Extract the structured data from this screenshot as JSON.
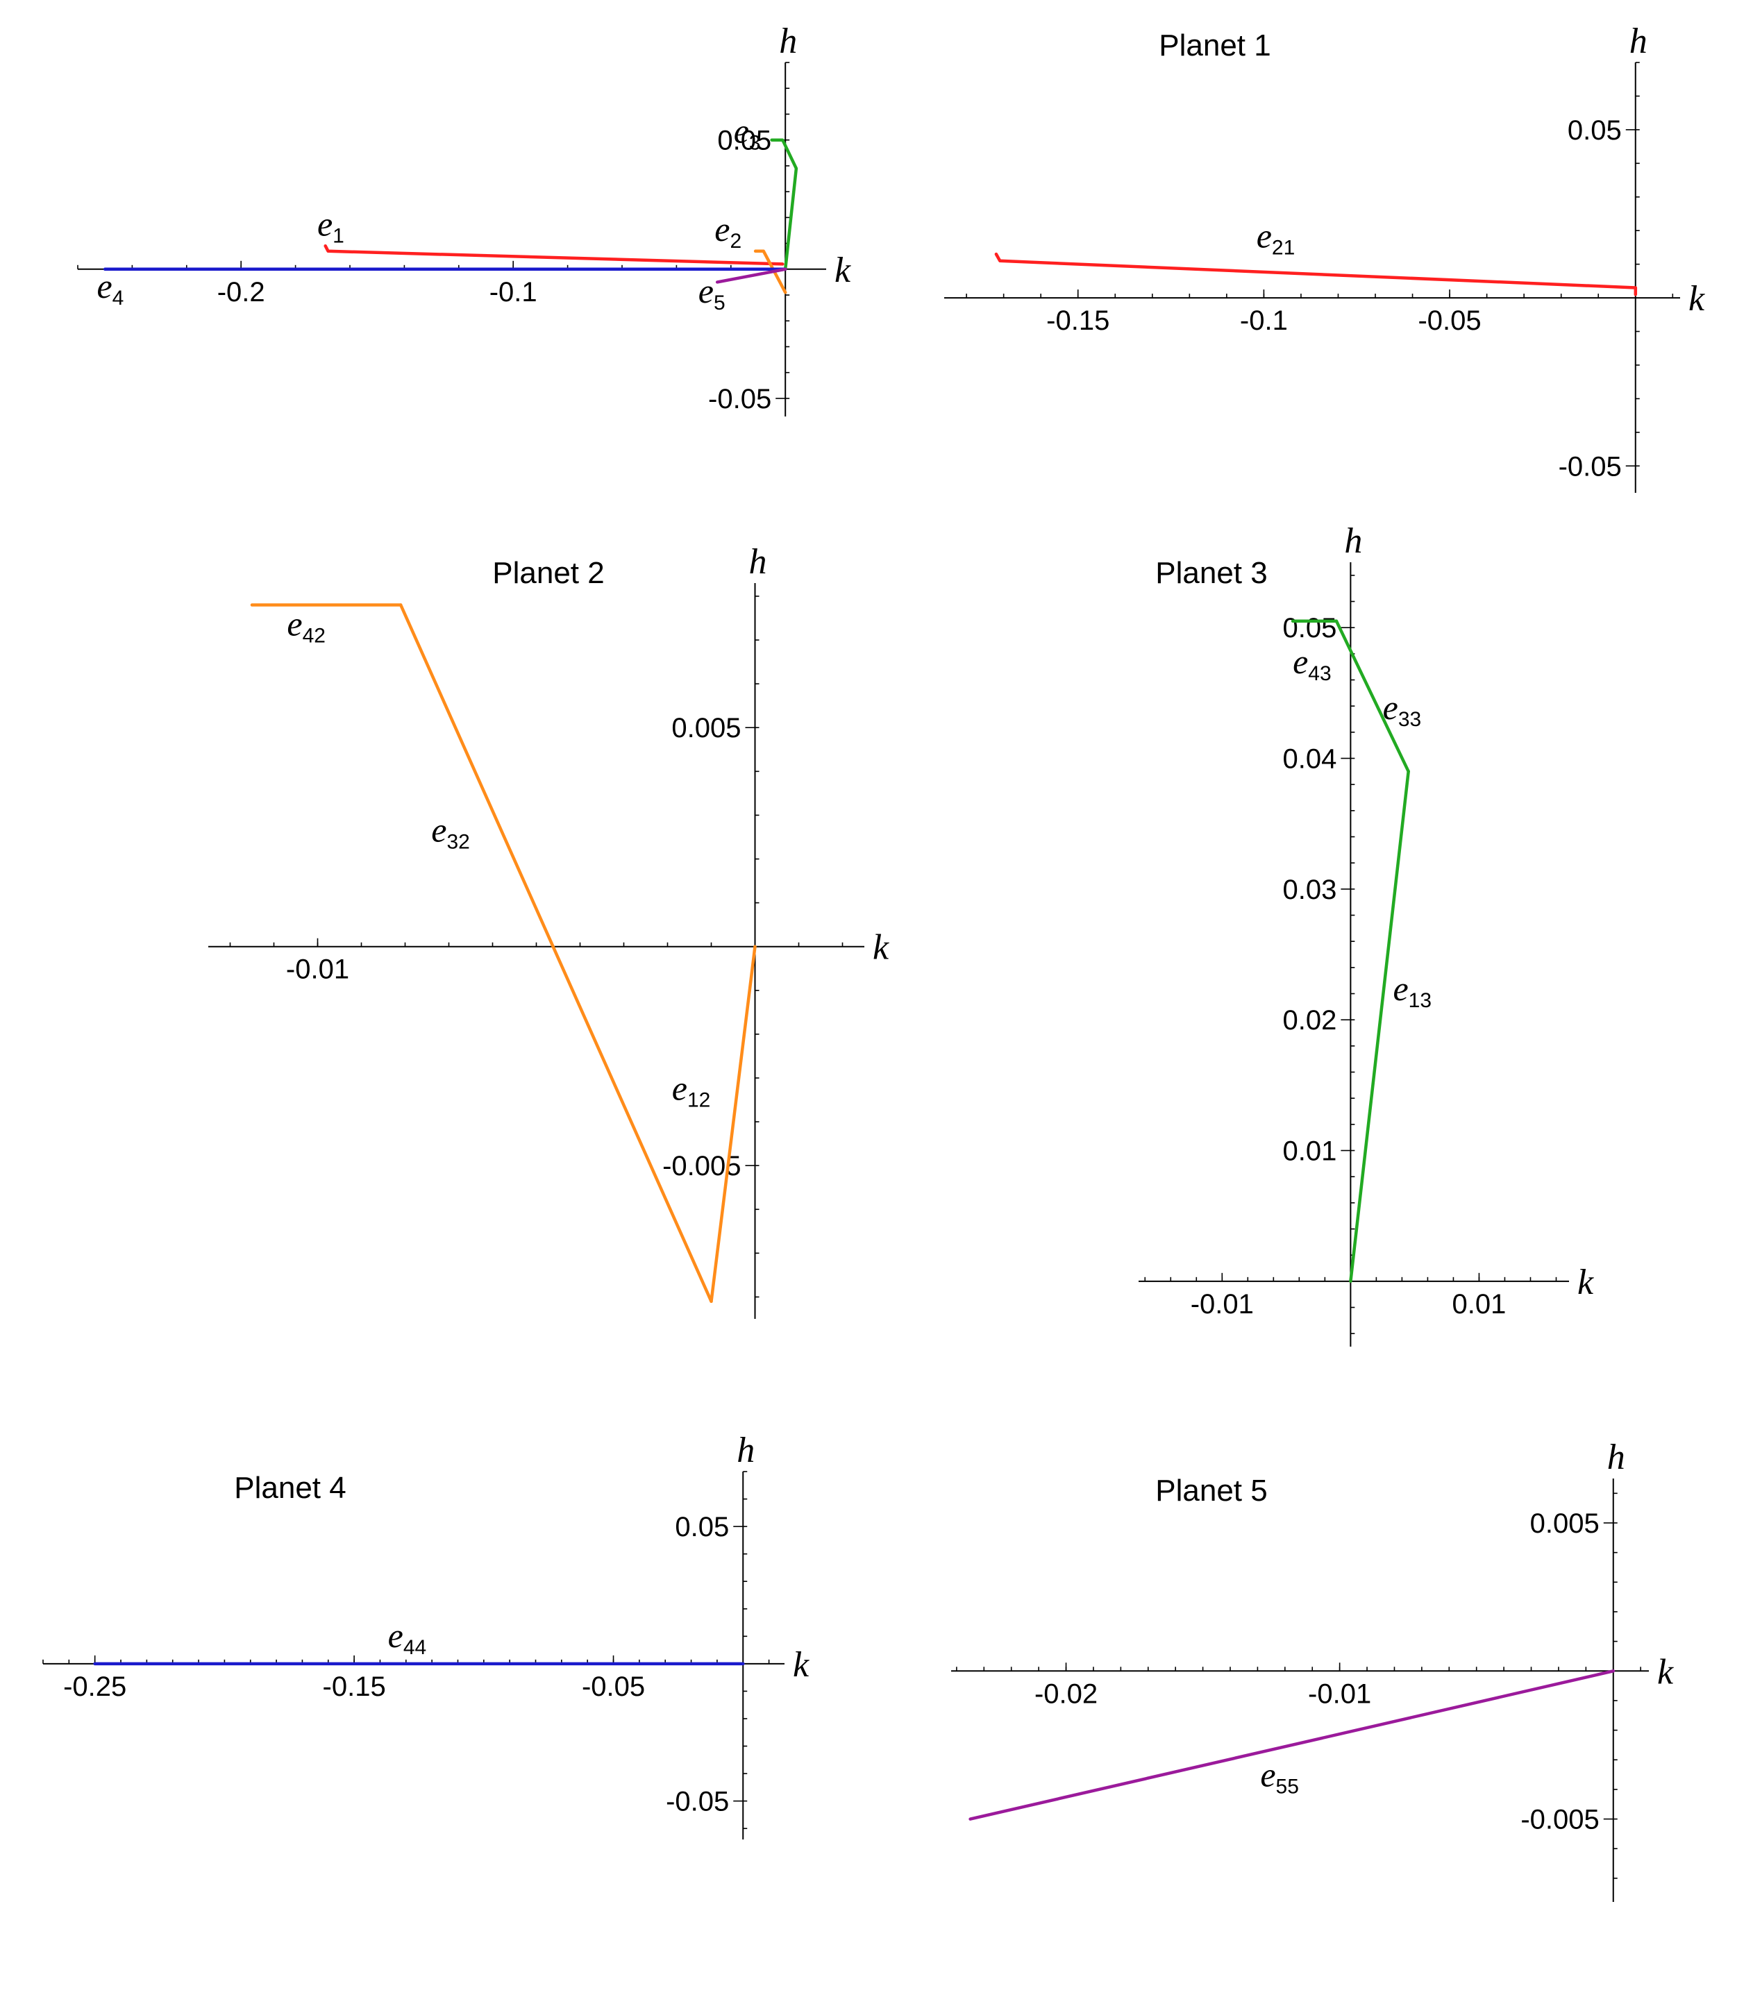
{
  "axis_names": {
    "x": "k",
    "y": "h"
  },
  "colors": {
    "red": "#ff2020",
    "orange": "#ff8c1a",
    "green": "#22aa22",
    "blue": "#1a1acc",
    "purple": "#9b1a9b"
  },
  "chart_data": [
    {
      "type": "line",
      "id": "overview",
      "title": "",
      "xlabel": "k",
      "ylabel": "h",
      "xlim": [
        -0.26,
        0.015
      ],
      "ylim": [
        -0.057,
        0.08
      ],
      "xticks": [
        {
          "v": -0.2,
          "t": "-0.2"
        },
        {
          "v": -0.1,
          "t": "-0.1"
        }
      ],
      "xminor": 0.02,
      "yticks": [
        {
          "v": 0.05,
          "t": "0.05"
        },
        {
          "v": -0.05,
          "t": "-0.05"
        }
      ],
      "yminor": 0.01,
      "series": [
        {
          "name": "e1",
          "color": "red",
          "points": [
            [
              -0.169,
              0.009
            ],
            [
              -0.168,
              0.007
            ],
            [
              -0.001,
              0.002
            ]
          ]
        },
        {
          "name": "e2",
          "color": "orange",
          "points": [
            [
              -0.011,
              0.007
            ],
            [
              -0.008,
              0.007
            ],
            [
              0.0,
              -0.009
            ]
          ]
        },
        {
          "name": "e3",
          "color": "green",
          "points": [
            [
              -0.005,
              0.05
            ],
            [
              -0.001,
              0.05
            ],
            [
              0.004,
              0.039
            ],
            [
              0.0,
              0.0
            ]
          ]
        },
        {
          "name": "e4",
          "color": "blue",
          "points": [
            [
              -0.25,
              0.0
            ],
            [
              0.0,
              0.0
            ]
          ]
        },
        {
          "name": "e5",
          "color": "purple",
          "points": [
            [
              -0.025,
              -0.005
            ],
            [
              0.0,
              0.0
            ]
          ]
        }
      ],
      "labels": [
        {
          "base": "e",
          "sub": "1",
          "x": -0.172,
          "y": 0.013
        },
        {
          "base": "e",
          "sub": "2",
          "x": -0.026,
          "y": 0.011
        },
        {
          "base": "e",
          "sub": "3",
          "x": -0.019,
          "y": 0.049
        },
        {
          "base": "e",
          "sub": "4",
          "x": -0.253,
          "y": -0.011
        },
        {
          "base": "e",
          "sub": "5",
          "x": -0.032,
          "y": -0.013
        }
      ]
    },
    {
      "type": "line",
      "id": "planet1",
      "title": "Planet 1",
      "xlabel": "k",
      "ylabel": "h",
      "xlim": [
        -0.186,
        0.012
      ],
      "ylim": [
        -0.058,
        0.07
      ],
      "xticks": [
        {
          "v": -0.15,
          "t": "-0.15"
        },
        {
          "v": -0.1,
          "t": "-0.1"
        },
        {
          "v": -0.05,
          "t": "-0.05"
        }
      ],
      "xminor": 0.01,
      "yticks": [
        {
          "v": 0.05,
          "t": "0.05"
        },
        {
          "v": -0.05,
          "t": "-0.05"
        }
      ],
      "yminor": 0.01,
      "series": [
        {
          "name": "e21",
          "color": "red",
          "points": [
            [
              -0.172,
              0.013
            ],
            [
              -0.171,
              0.011
            ],
            [
              0.0,
              0.003
            ],
            [
              0.0,
              0.001
            ]
          ]
        }
      ],
      "labels": [
        {
          "base": "e",
          "sub": "21",
          "x": -0.102,
          "y": 0.015
        }
      ]
    },
    {
      "type": "line",
      "id": "planet2",
      "title": "Planet 2",
      "xlabel": "k",
      "ylabel": "h",
      "xlim": [
        -0.0125,
        0.0025
      ],
      "ylim": [
        -0.0085,
        0.0083
      ],
      "xticks": [
        {
          "v": -0.01,
          "t": "-0.01"
        }
      ],
      "xminor": 0.001,
      "yticks": [
        {
          "v": 0.005,
          "t": "0.005"
        },
        {
          "v": -0.005,
          "t": "-0.005"
        }
      ],
      "yminor": 0.001,
      "series": [
        {
          "name": "e42",
          "color": "orange",
          "points": [
            [
              -0.0115,
              0.0078
            ],
            [
              -0.0081,
              0.0078
            ]
          ]
        },
        {
          "name": "e32",
          "color": "orange",
          "points": [
            [
              -0.0081,
              0.0078
            ],
            [
              -0.001,
              -0.0081
            ]
          ]
        },
        {
          "name": "e12",
          "color": "orange",
          "points": [
            [
              -0.001,
              -0.0081
            ],
            [
              0.0,
              0.0
            ]
          ]
        }
      ],
      "labels": [
        {
          "base": "e",
          "sub": "42",
          "x": -0.0107,
          "y": 0.0071
        },
        {
          "base": "e",
          "sub": "32",
          "x": -0.0074,
          "y": 0.0024
        },
        {
          "base": "e",
          "sub": "12",
          "x": -0.0019,
          "y": -0.0035
        }
      ]
    },
    {
      "type": "line",
      "id": "planet3",
      "title": "Planet 3",
      "xlabel": "k",
      "ylabel": "h",
      "xlim": [
        -0.0165,
        0.017
      ],
      "ylim": [
        -0.005,
        0.055
      ],
      "xticks": [
        {
          "v": -0.01,
          "t": "-0.01"
        },
        {
          "v": 0.01,
          "t": "0.01"
        }
      ],
      "xminor": 0.002,
      "yticks": [
        {
          "v": 0.05,
          "t": "0.05"
        },
        {
          "v": 0.04,
          "t": "0.04"
        },
        {
          "v": 0.03,
          "t": "0.03"
        },
        {
          "v": 0.02,
          "t": "0.02"
        },
        {
          "v": 0.01,
          "t": "0.01"
        }
      ],
      "yminor": 0.002,
      "series": [
        {
          "name": "e43",
          "color": "green",
          "points": [
            [
              -0.0045,
              0.0505
            ],
            [
              -0.0011,
              0.0505
            ]
          ]
        },
        {
          "name": "e33",
          "color": "green",
          "points": [
            [
              -0.0011,
              0.0505
            ],
            [
              0.0045,
              0.039
            ]
          ]
        },
        {
          "name": "e13",
          "color": "green",
          "points": [
            [
              0.0045,
              0.039
            ],
            [
              0.0,
              0.0
            ]
          ]
        }
      ],
      "labels": [
        {
          "base": "e",
          "sub": "43",
          "x": -0.0045,
          "y": 0.0465
        },
        {
          "base": "e",
          "sub": "33",
          "x": 0.0025,
          "y": 0.043
        },
        {
          "base": "e",
          "sub": "13",
          "x": 0.0033,
          "y": 0.0215
        }
      ]
    },
    {
      "type": "line",
      "id": "planet4",
      "title": "Planet 4",
      "xlabel": "k",
      "ylabel": "h",
      "xlim": [
        -0.27,
        0.016
      ],
      "ylim": [
        -0.064,
        0.07
      ],
      "xticks": [
        {
          "v": -0.25,
          "t": "-0.25"
        },
        {
          "v": -0.15,
          "t": "-0.15"
        },
        {
          "v": -0.05,
          "t": "-0.05"
        }
      ],
      "xminor": 0.01,
      "yticks": [
        {
          "v": 0.05,
          "t": "0.05"
        },
        {
          "v": -0.05,
          "t": "-0.05"
        }
      ],
      "yminor": 0.01,
      "series": [
        {
          "name": "e44",
          "color": "blue",
          "points": [
            [
              -0.25,
              0.0
            ],
            [
              0.0,
              0.0
            ]
          ]
        }
      ],
      "labels": [
        {
          "base": "e",
          "sub": "44",
          "x": -0.137,
          "y": 0.006
        }
      ]
    },
    {
      "type": "line",
      "id": "planet5",
      "title": "Planet 5",
      "xlabel": "k",
      "ylabel": "h",
      "xlim": [
        -0.0242,
        0.0013
      ],
      "ylim": [
        -0.0078,
        0.0065
      ],
      "xticks": [
        {
          "v": -0.02,
          "t": "-0.02"
        },
        {
          "v": -0.01,
          "t": "-0.01"
        }
      ],
      "xminor": 0.001,
      "yticks": [
        {
          "v": 0.005,
          "t": "0.005"
        },
        {
          "v": -0.005,
          "t": "-0.005"
        }
      ],
      "yminor": 0.001,
      "series": [
        {
          "name": "e55",
          "color": "purple",
          "points": [
            [
              -0.0235,
              -0.005
            ],
            [
              0.0,
              0.0
            ]
          ]
        }
      ],
      "labels": [
        {
          "base": "e",
          "sub": "55",
          "x": -0.0129,
          "y": -0.0039
        }
      ]
    }
  ]
}
